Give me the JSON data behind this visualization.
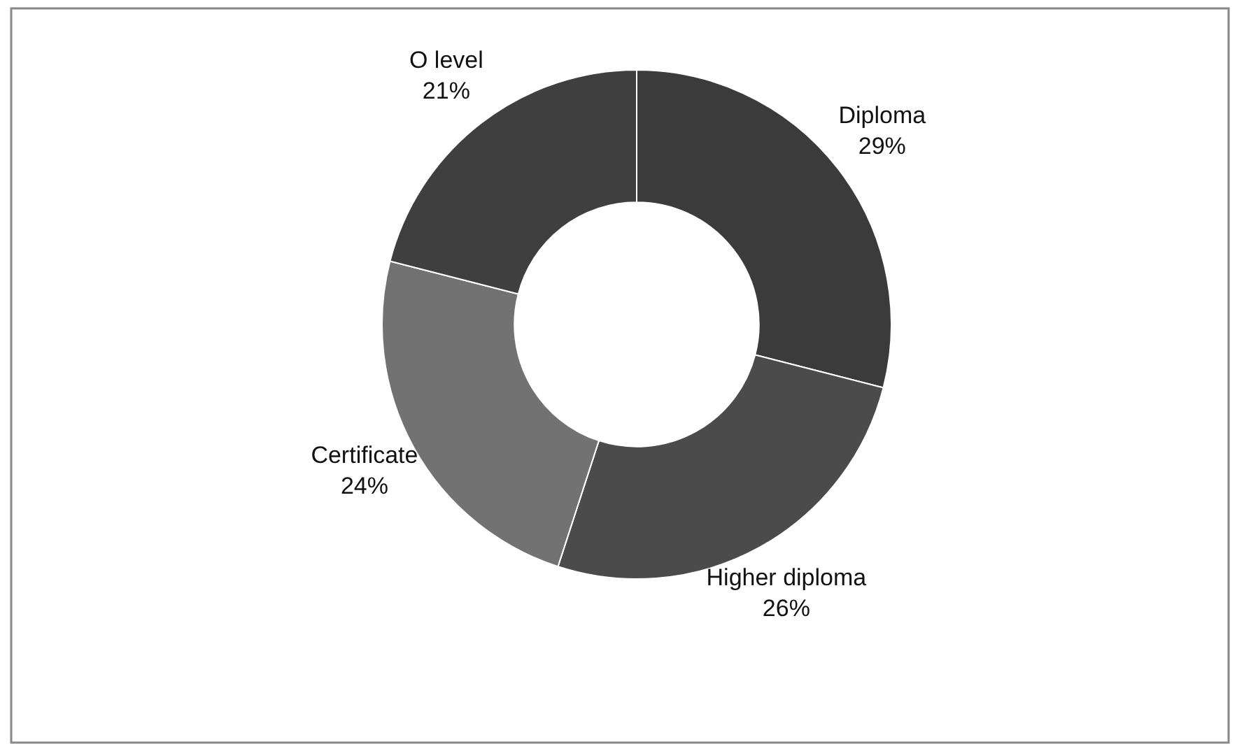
{
  "chart_data": {
    "type": "donut",
    "categories": [
      "Diploma",
      "Higher diploma",
      "Certificate",
      "O level"
    ],
    "values": [
      29,
      26,
      24,
      21
    ],
    "colors": [
      "#3b3b3b",
      "#4b4b4b",
      "#727272",
      "#3f3f3f"
    ],
    "value_labels": [
      "29%",
      "26%",
      "24%",
      "21%"
    ]
  }
}
